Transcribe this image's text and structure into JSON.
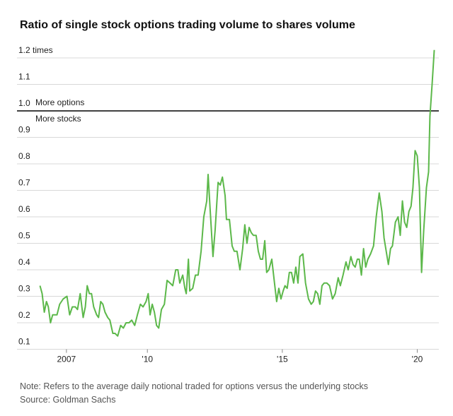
{
  "chart_data": {
    "type": "line",
    "title": "Ratio of single stock options trading volume to shares volume",
    "note": "Note: Refers to the average daily notional traded for options versus the underlying stocks",
    "source": "Source: Goldman Sachs",
    "reference_line": {
      "value": 1.0,
      "label_above": "More options",
      "label_below": "More stocks",
      "color": "#000000"
    },
    "xlim": [
      2005.85,
      2020.8
    ],
    "ylim": [
      0.1,
      1.2
    ],
    "xticks": [
      {
        "value": 2007,
        "label": "2007"
      },
      {
        "value": 2010,
        "label": "'10"
      },
      {
        "value": 2015,
        "label": "'15"
      },
      {
        "value": 2020,
        "label": "'20"
      }
    ],
    "yticks": [
      0.1,
      0.2,
      0.3,
      0.4,
      0.5,
      0.6,
      0.7,
      0.8,
      0.9,
      {
        "value": 1.0,
        "label": "1.0"
      },
      1.1,
      {
        "value": 1.2,
        "label": "1.2 times"
      }
    ],
    "grid": true,
    "x": [
      2006.02,
      2006.1,
      2006.18,
      2006.26,
      2006.33,
      2006.41,
      2006.49,
      2006.65,
      2006.75,
      2006.88,
      2007.02,
      2007.12,
      2007.22,
      2007.33,
      2007.41,
      2007.51,
      2007.62,
      2007.7,
      2007.77,
      2007.85,
      2007.93,
      2008.01,
      2008.12,
      2008.19,
      2008.27,
      2008.35,
      2008.43,
      2008.53,
      2008.61,
      2008.72,
      2008.8,
      2008.9,
      2009.01,
      2009.11,
      2009.21,
      2009.32,
      2009.42,
      2009.53,
      2009.63,
      2009.74,
      2009.84,
      2009.95,
      2010.03,
      2010.1,
      2010.18,
      2010.26,
      2010.34,
      2010.42,
      2010.52,
      2010.63,
      2010.73,
      2010.84,
      2010.94,
      2011.05,
      2011.13,
      2011.2,
      2011.31,
      2011.39,
      2011.44,
      2011.52,
      2011.57,
      2011.68,
      2011.78,
      2011.88,
      2011.99,
      2012.09,
      2012.2,
      2012.25,
      2012.33,
      2012.43,
      2012.51,
      2012.62,
      2012.7,
      2012.78,
      2012.88,
      2012.93,
      2013.04,
      2013.14,
      2013.22,
      2013.32,
      2013.43,
      2013.53,
      2013.61,
      2013.69,
      2013.77,
      2013.85,
      2013.93,
      2014.03,
      2014.11,
      2014.19,
      2014.27,
      2014.35,
      2014.42,
      2014.5,
      2014.61,
      2014.71,
      2014.79,
      2014.87,
      2014.95,
      2015.03,
      2015.1,
      2015.18,
      2015.26,
      2015.34,
      2015.42,
      2015.5,
      2015.58,
      2015.65,
      2015.76,
      2015.86,
      2015.97,
      2016.07,
      2016.15,
      2016.23,
      2016.31,
      2016.39,
      2016.47,
      2016.55,
      2016.65,
      2016.75,
      2016.86,
      2016.96,
      2017.07,
      2017.15,
      2017.25,
      2017.36,
      2017.44,
      2017.54,
      2017.62,
      2017.7,
      2017.78,
      2017.85,
      2017.93,
      2018.01,
      2018.09,
      2018.17,
      2018.27,
      2018.38,
      2018.48,
      2018.59,
      2018.69,
      2018.77,
      2018.85,
      2018.93,
      2019.01,
      2019.08,
      2019.19,
      2019.29,
      2019.37,
      2019.45,
      2019.53,
      2019.61,
      2019.69,
      2019.77,
      2019.84,
      2019.92,
      2020.0,
      2020.08,
      2020.16,
      2020.24,
      2020.34,
      2020.42,
      2020.47,
      2020.55,
      2020.63
    ],
    "series": [
      {
        "color": "#5cb84a",
        "values": [
          0.34,
          0.31,
          0.24,
          0.28,
          0.26,
          0.2,
          0.23,
          0.23,
          0.27,
          0.29,
          0.3,
          0.23,
          0.26,
          0.26,
          0.25,
          0.31,
          0.22,
          0.26,
          0.34,
          0.31,
          0.31,
          0.26,
          0.23,
          0.22,
          0.28,
          0.27,
          0.24,
          0.22,
          0.21,
          0.16,
          0.16,
          0.15,
          0.19,
          0.18,
          0.2,
          0.2,
          0.21,
          0.19,
          0.23,
          0.27,
          0.26,
          0.28,
          0.31,
          0.23,
          0.27,
          0.24,
          0.19,
          0.18,
          0.25,
          0.27,
          0.36,
          0.35,
          0.34,
          0.4,
          0.4,
          0.35,
          0.38,
          0.33,
          0.31,
          0.44,
          0.32,
          0.33,
          0.38,
          0.38,
          0.47,
          0.6,
          0.66,
          0.76,
          0.62,
          0.45,
          0.55,
          0.73,
          0.72,
          0.75,
          0.68,
          0.59,
          0.59,
          0.49,
          0.47,
          0.47,
          0.4,
          0.48,
          0.57,
          0.5,
          0.56,
          0.54,
          0.53,
          0.53,
          0.47,
          0.44,
          0.44,
          0.51,
          0.39,
          0.4,
          0.44,
          0.35,
          0.28,
          0.33,
          0.29,
          0.32,
          0.34,
          0.33,
          0.39,
          0.39,
          0.35,
          0.41,
          0.35,
          0.45,
          0.46,
          0.35,
          0.29,
          0.27,
          0.28,
          0.32,
          0.31,
          0.27,
          0.34,
          0.35,
          0.35,
          0.34,
          0.29,
          0.31,
          0.37,
          0.34,
          0.38,
          0.43,
          0.4,
          0.45,
          0.42,
          0.41,
          0.44,
          0.44,
          0.38,
          0.48,
          0.41,
          0.44,
          0.46,
          0.49,
          0.6,
          0.69,
          0.62,
          0.52,
          0.47,
          0.42,
          0.48,
          0.49,
          0.58,
          0.6,
          0.53,
          0.66,
          0.58,
          0.56,
          0.62,
          0.64,
          0.71,
          0.85,
          0.83,
          0.71,
          0.39,
          0.55,
          0.71,
          0.77,
          0.98,
          1.1,
          1.23
        ]
      }
    ]
  }
}
